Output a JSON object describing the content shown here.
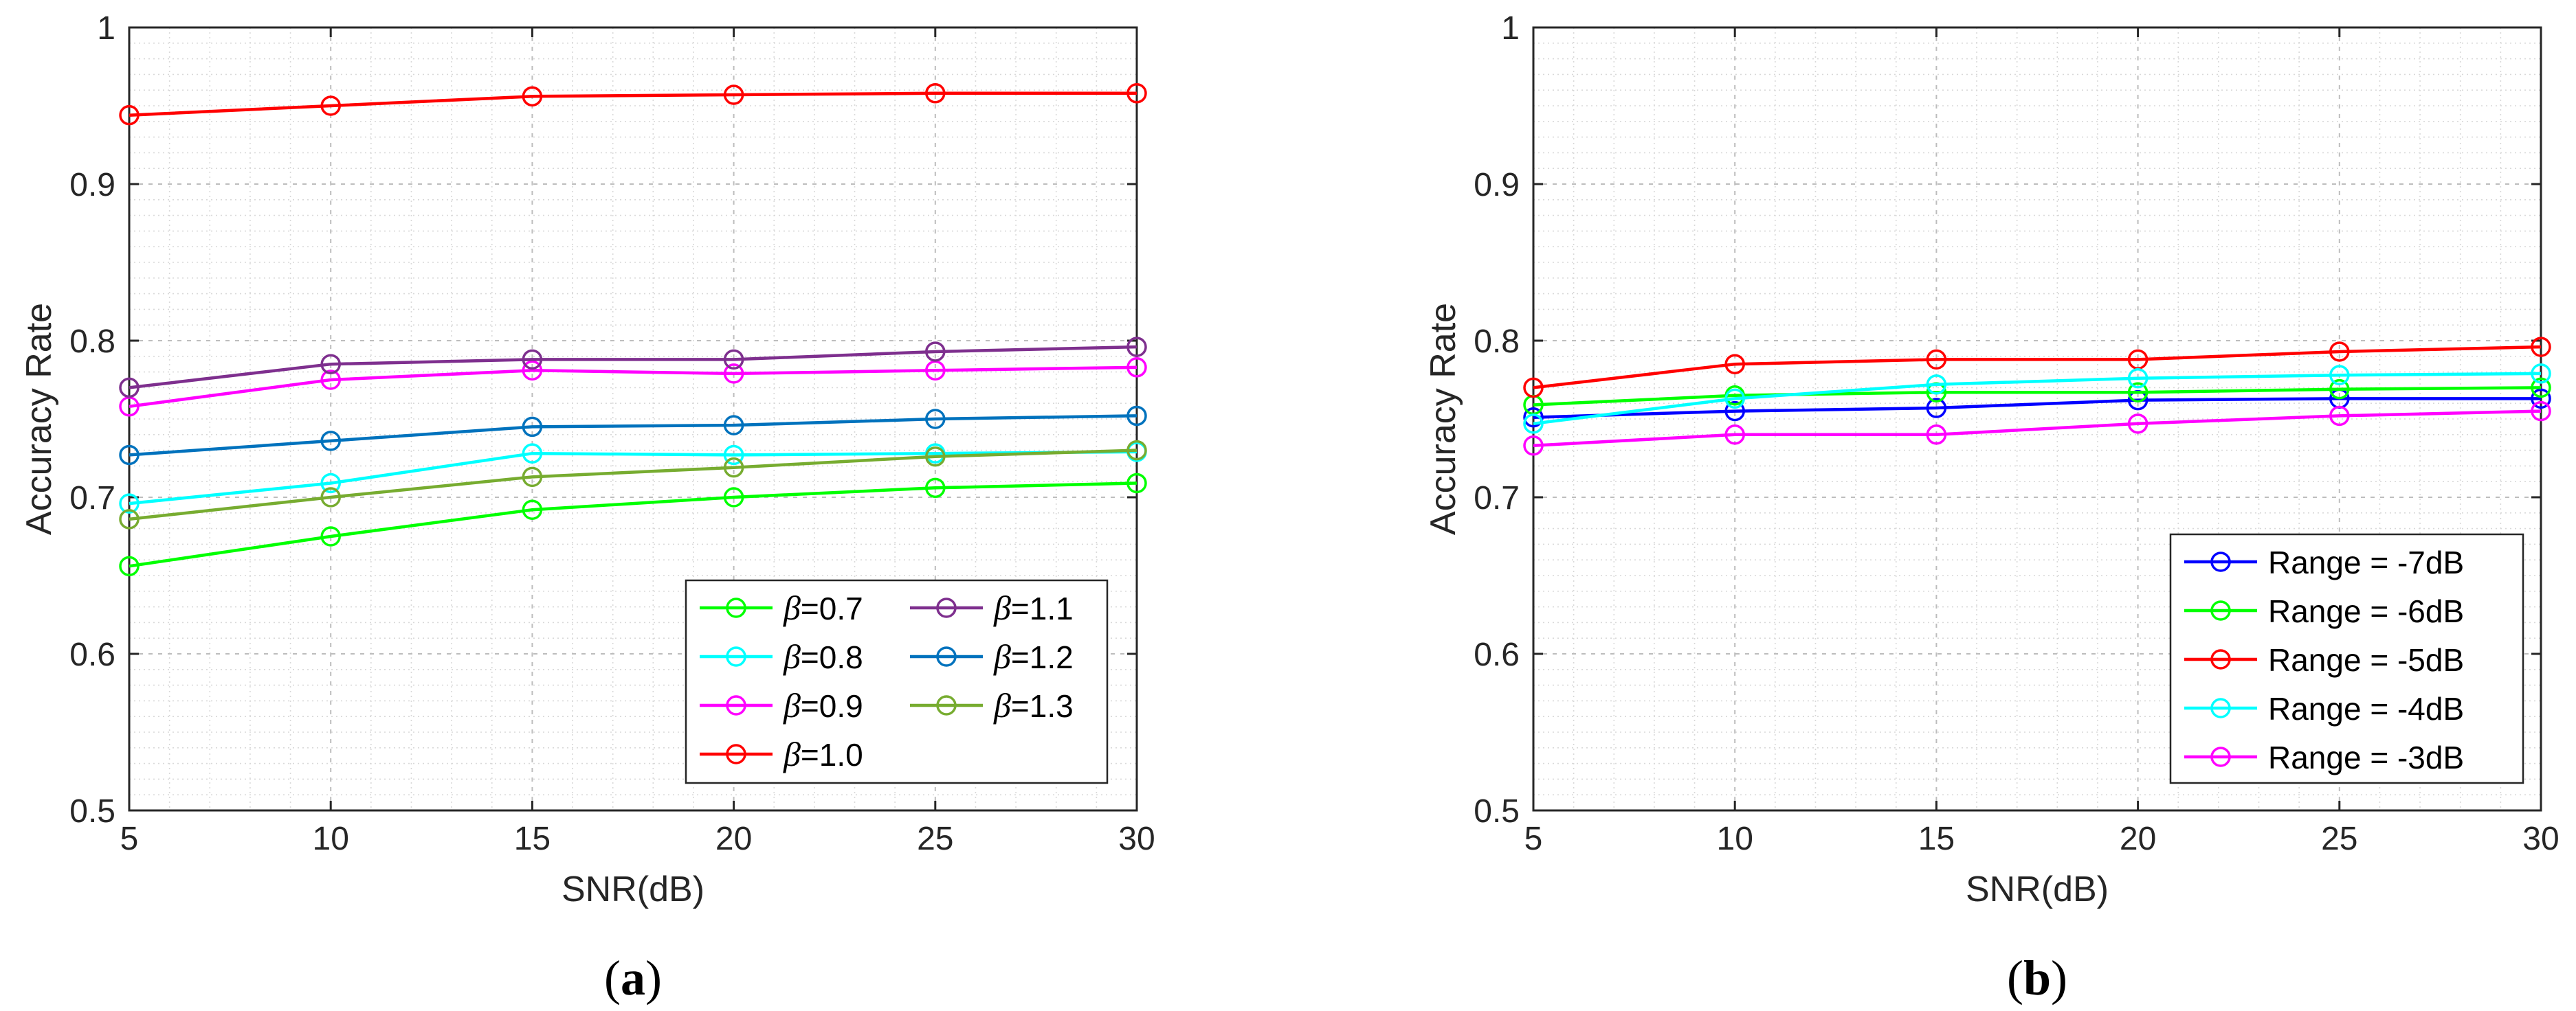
{
  "chart_data": [
    {
      "type": "line",
      "panel_label": "(a)",
      "panel_letter": "a",
      "xlabel": "SNR(dB)",
      "ylabel": "Accuracy Rate",
      "xlim": [
        5,
        30
      ],
      "ylim": [
        0.5,
        1
      ],
      "xticks": [
        5,
        10,
        15,
        20,
        25,
        30
      ],
      "yticks": [
        0.5,
        0.6,
        0.7,
        0.8,
        0.9,
        1
      ],
      "ytick_labels": [
        "0.5",
        "0.6",
        "0.7",
        "0.8",
        "0.9",
        "1"
      ],
      "grid": true,
      "legend_position": "bottom-right",
      "legend_columns": 2,
      "x": [
        5,
        10,
        15,
        20,
        25,
        30
      ],
      "series": [
        {
          "name": "β=0.7",
          "symbol": "β",
          "value_label": "=0.7",
          "color": "#00ff00",
          "values": [
            0.656,
            0.675,
            0.692,
            0.7,
            0.706,
            0.709
          ]
        },
        {
          "name": "β=0.8",
          "symbol": "β",
          "value_label": "=0.8",
          "color": "#00ffff",
          "values": [
            0.696,
            0.709,
            0.728,
            0.727,
            0.728,
            0.729
          ]
        },
        {
          "name": "β=0.9",
          "symbol": "β",
          "value_label": "=0.9",
          "color": "#ff00ff",
          "values": [
            0.758,
            0.775,
            0.781,
            0.779,
            0.781,
            0.783
          ]
        },
        {
          "name": "β=1.0",
          "symbol": "β",
          "value_label": "=1.0",
          "color": "#ff0000",
          "values": [
            0.944,
            0.95,
            0.956,
            0.957,
            0.958,
            0.958
          ]
        },
        {
          "name": "β=1.1",
          "symbol": "β",
          "value_label": "=1.1",
          "color": "#7e2f8e",
          "values": [
            0.77,
            0.785,
            0.788,
            0.788,
            0.793,
            0.796
          ]
        },
        {
          "name": "β=1.2",
          "symbol": "β",
          "value_label": "=1.2",
          "color": "#0072bd",
          "values": [
            0.727,
            0.736,
            0.745,
            0.746,
            0.75,
            0.752
          ]
        },
        {
          "name": "β=1.3",
          "symbol": "β",
          "value_label": "=1.3",
          "color": "#77ac30",
          "values": [
            0.686,
            0.7,
            0.713,
            0.719,
            0.726,
            0.73
          ]
        }
      ]
    },
    {
      "type": "line",
      "panel_label": "(b)",
      "panel_letter": "b",
      "xlabel": "SNR(dB)",
      "ylabel": "Accuracy Rate",
      "xlim": [
        5,
        30
      ],
      "ylim": [
        0.5,
        1
      ],
      "xticks": [
        5,
        10,
        15,
        20,
        25,
        30
      ],
      "yticks": [
        0.5,
        0.6,
        0.7,
        0.8,
        0.9,
        1
      ],
      "ytick_labels": [
        "0.5",
        "0.6",
        "0.7",
        "0.8",
        "0.9",
        "1"
      ],
      "grid": true,
      "legend_position": "bottom-right",
      "legend_columns": 1,
      "x": [
        5,
        10,
        15,
        20,
        25,
        30
      ],
      "series": [
        {
          "name": "Range = -7dB",
          "color": "#0000ff",
          "values": [
            0.751,
            0.755,
            0.757,
            0.762,
            0.763,
            0.763
          ]
        },
        {
          "name": "Range = -6dB",
          "color": "#00ff00",
          "values": [
            0.759,
            0.765,
            0.767,
            0.767,
            0.769,
            0.77
          ]
        },
        {
          "name": "Range = -5dB",
          "color": "#ff0000",
          "values": [
            0.77,
            0.785,
            0.788,
            0.788,
            0.793,
            0.796
          ]
        },
        {
          "name": "Range = -4dB",
          "color": "#00ffff",
          "values": [
            0.747,
            0.763,
            0.772,
            0.776,
            0.778,
            0.779
          ]
        },
        {
          "name": "Range = -3dB",
          "color": "#ff00ff",
          "values": [
            0.733,
            0.74,
            0.74,
            0.747,
            0.752,
            0.755
          ]
        }
      ]
    }
  ]
}
